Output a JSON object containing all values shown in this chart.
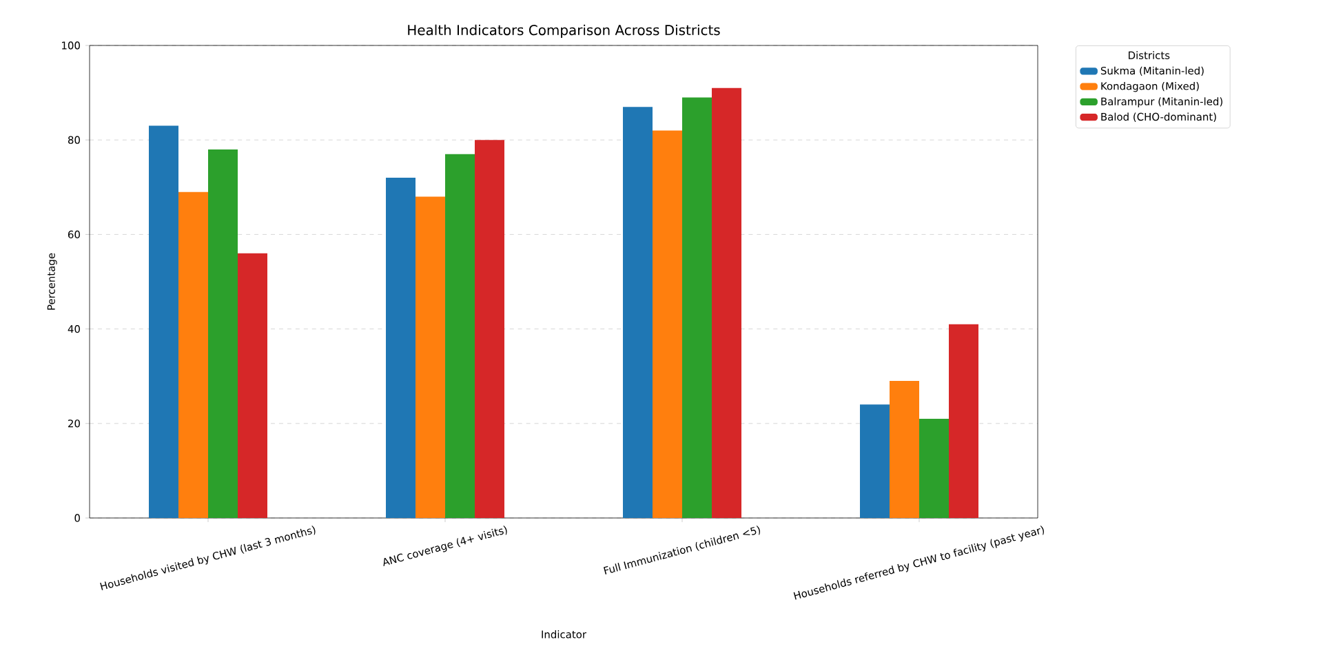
{
  "chart_data": {
    "type": "bar",
    "title": "Health Indicators Comparison Across Districts",
    "xlabel": "Indicator",
    "ylabel": "Percentage",
    "legend_title": "Districts",
    "categories": [
      "Households visited by CHW (last 3 months)",
      "ANC coverage (4+ visits)",
      "Full Immunization (children <5)",
      "Households referred by CHW to facility (past year)"
    ],
    "series": [
      {
        "name": "Sukma (Mitanin-led)",
        "color": "#1f77b4",
        "values": [
          83,
          72,
          87,
          24
        ]
      },
      {
        "name": "Kondagaon (Mixed)",
        "color": "#ff7f0e",
        "values": [
          69,
          68,
          82,
          29
        ]
      },
      {
        "name": "Balrampur (Mitanin-led)",
        "color": "#2ca02c",
        "values": [
          78,
          77,
          89,
          21
        ]
      },
      {
        "name": "Balod (CHO-dominant)",
        "color": "#d62728",
        "values": [
          56,
          80,
          91,
          41
        ]
      }
    ],
    "ylim": [
      0,
      100
    ],
    "yticks": [
      0,
      20,
      40,
      60,
      80,
      100
    ],
    "grid": "y",
    "legend": "top right"
  }
}
